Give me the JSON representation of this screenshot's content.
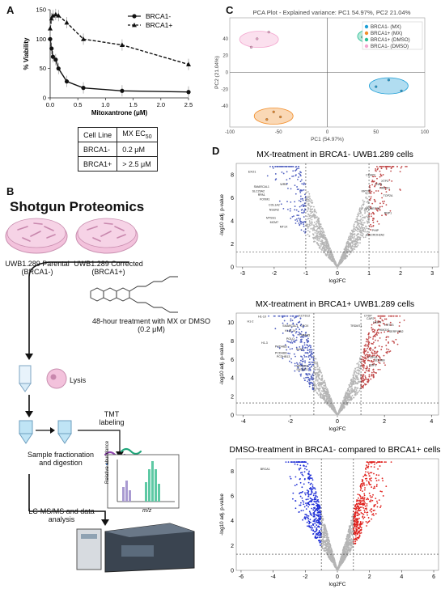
{
  "panels": {
    "a": "A",
    "b": "B",
    "c": "C",
    "d": "D"
  },
  "panel_a": {
    "table": {
      "headers": [
        "Cell Line",
        "MX EC",
        "50"
      ],
      "rows": [
        [
          "BRCA1-",
          "0.2 μM"
        ],
        [
          "BRCA1+",
          "> 2.5 μM"
        ]
      ]
    }
  },
  "panel_b": {
    "title": "Shotgun Proteomics",
    "dish1": "UWB1.289 Parental",
    "dish1_sub": "(BRCA1-)",
    "dish2": "UWB1.289 Corrected",
    "dish2_sub": "(BRCA1+)",
    "treatment": "48-hour treatment with MX or DMSO",
    "treatment_dose": "(0.2 μM)",
    "lysis": "Lysis",
    "tmt": "TMT",
    "tmt2": "labeling",
    "fractionation": "Sample fractionation",
    "fractionation2": "and digestion",
    "lcms": "LC-MS/MS and data",
    "lcms2": "analysis",
    "spectrum_ylabel": "Relative abundance",
    "spectrum_xlabel": "m/z",
    "colors": {
      "dish": "#f3c2dc",
      "sample": "#bfe4f5",
      "peak_purple": "#a99ad1",
      "peak_green": "#5ec9a4"
    }
  },
  "chart_data": [
    {
      "type": "line",
      "panel": "A",
      "xlabel": "Mitoxantrone (μM)",
      "ylabel": "% Viability",
      "xlim": [
        0,
        2.5
      ],
      "ylim": [
        0,
        150
      ],
      "xticks": [
        "0.0",
        "0.5",
        "1.0",
        "1.5",
        "2.0",
        "2.5"
      ],
      "yticks": [
        "0",
        "50",
        "100",
        "150"
      ],
      "legend_position": "top-right",
      "series": [
        {
          "name": "BRCA1-",
          "marker": "circle",
          "x": [
            0.0,
            0.025,
            0.05,
            0.1,
            0.15,
            0.3,
            0.6,
            1.3,
            2.5
          ],
          "y": [
            100,
            84,
            70,
            65,
            50,
            28,
            17,
            12,
            10
          ]
        },
        {
          "name": "BRCA1+",
          "marker": "triangle",
          "x": [
            0.0,
            0.025,
            0.05,
            0.1,
            0.15,
            0.3,
            0.6,
            1.3,
            2.5
          ],
          "y": [
            118,
            135,
            140,
            142,
            140,
            128,
            100,
            90,
            57
          ]
        }
      ]
    },
    {
      "type": "scatter",
      "panel": "C",
      "title": "PCA Plot - Explained variance: PC1 54.97%, PC2 21.04%",
      "xlabel": "PC1 (54.97%)",
      "ylabel": "PC2 (21.04%)",
      "xlim": [
        -100,
        100
      ],
      "ylim": [
        -65,
        65
      ],
      "xticks": [
        "-100",
        "-50",
        "0",
        "50",
        "100"
      ],
      "yticks": [
        "-40",
        "-20",
        "0",
        "20",
        "40"
      ],
      "legend_position": "top-right",
      "series": [
        {
          "name": "BRCA1- (MX)",
          "color": "#1f9fd6",
          "x": [
            50,
            63,
            76
          ],
          "y": [
            -17,
            -9,
            -22
          ]
        },
        {
          "name": "BRCA1+ (MX)",
          "color": "#f28e2b",
          "x": [
            -55,
            -48,
            -62
          ],
          "y": [
            -47,
            -53,
            -56
          ]
        },
        {
          "name": "BRCA1+ (DMSO)",
          "color": "#2bbf94",
          "x": [
            36,
            52,
            65
          ],
          "y": [
            42,
            47,
            40
          ]
        },
        {
          "name": "BRCA1- (DMSO)",
          "color": "#f3a7cf",
          "x": [
            -72,
            -60,
            -78
          ],
          "y": [
            40,
            48,
            30
          ]
        }
      ]
    },
    {
      "type": "scatter",
      "panel": "D1",
      "title": "MX-treatment in BRCA1- UWB1.289 cells",
      "xlabel": "log2FC",
      "ylabel": "-log10 adj. p-value",
      "xlim": [
        -3.2,
        3.2
      ],
      "ylim": [
        0,
        9
      ],
      "xticks": [
        "-3",
        "-2",
        "-1",
        "0",
        "1",
        "2",
        "3"
      ],
      "yticks": [
        "0",
        "2",
        "4",
        "6",
        "8"
      ],
      "labels": [
        {
          "text": "EXO1",
          "x": -2.7,
          "y": 8.2
        },
        {
          "text": "WRN",
          "x": -1.7,
          "y": 7.1
        },
        {
          "text": "SMARCAL1",
          "x": -2.4,
          "y": 6.9
        },
        {
          "text": "SLC29A2",
          "x": -2.5,
          "y": 6.5
        },
        {
          "text": "RPA1",
          "x": -2.4,
          "y": 6.2
        },
        {
          "text": "FOXM1",
          "x": -2.3,
          "y": 5.8
        },
        {
          "text": "COL1A2",
          "x": -2.0,
          "y": 5.3
        },
        {
          "text": "NSUN2",
          "x": -2.0,
          "y": 4.9
        },
        {
          "text": "MTSS1",
          "x": -2.1,
          "y": 4.2
        },
        {
          "text": "MCM7",
          "x": -2.0,
          "y": 3.8
        },
        {
          "text": "MT1X",
          "x": -1.7,
          "y": 3.4
        },
        {
          "text": "CKAP2",
          "x": 1.05,
          "y": 7.9
        },
        {
          "text": "XTP3",
          "x": 1.5,
          "y": 7.4
        },
        {
          "text": "TNS4",
          "x": 1.3,
          "y": 7.1
        },
        {
          "text": "HMOX1",
          "x": 1.5,
          "y": 6.8
        },
        {
          "text": "KRT23",
          "x": 0.9,
          "y": 6.5
        },
        {
          "text": "TOP2A",
          "x": 1.6,
          "y": 6.1
        },
        {
          "text": "APOBEC3B",
          "x": 1.1,
          "y": 5.0
        },
        {
          "text": "RBP1",
          "x": 1.6,
          "y": 4.6
        },
        {
          "text": "PHIP",
          "x": 1.2,
          "y": 3.1
        },
        {
          "text": "MACROH2A2",
          "x": 1.2,
          "y": 2.7
        }
      ]
    },
    {
      "type": "scatter",
      "panel": "D2",
      "title": "MX-treatment in BRCA1+ UWB1.289 cells",
      "xlabel": "log2FC",
      "ylabel": "-log10 adj. p-value",
      "xlim": [
        -4.3,
        4.3
      ],
      "ylim": [
        0,
        11
      ],
      "xticks": [
        "-4",
        "-2",
        "0",
        "2",
        "4"
      ],
      "yticks": [
        "0",
        "2",
        "4",
        "6",
        "8",
        "10"
      ],
      "labels": [
        {
          "text": "H1-10",
          "x": -3.2,
          "y": 10.5
        },
        {
          "text": "KCTD12",
          "x": -1.4,
          "y": 10.6
        },
        {
          "text": "H1-2",
          "x": -3.7,
          "y": 10.0
        },
        {
          "text": "H1-3",
          "x": -3.1,
          "y": 7.7
        },
        {
          "text": "SMARCAL1",
          "x": -2.0,
          "y": 9.5
        },
        {
          "text": "CPOX",
          "x": -1.4,
          "y": 9.5
        },
        {
          "text": "KLHL14",
          "x": -2.0,
          "y": 9.0
        },
        {
          "text": "TSPAN5",
          "x": -1.4,
          "y": 8.5
        },
        {
          "text": "POLQ",
          "x": -2.0,
          "y": 8.1
        },
        {
          "text": "PCDHB5",
          "x": -2.4,
          "y": 7.3
        },
        {
          "text": "SUN1",
          "x": -1.6,
          "y": 7.0
        },
        {
          "text": "PCDHB6",
          "x": -2.4,
          "y": 6.6
        },
        {
          "text": "PCDHB13",
          "x": -2.3,
          "y": 6.2
        },
        {
          "text": "MAP2K6",
          "x": -1.5,
          "y": 5.2
        },
        {
          "text": "SASBP3",
          "x": -1.5,
          "y": 4.8
        },
        {
          "text": "CTDP",
          "x": 1.3,
          "y": 10.6
        },
        {
          "text": "CAP2",
          "x": 1.4,
          "y": 10.3
        },
        {
          "text": "HEPH",
          "x": 1.7,
          "y": 9.9
        },
        {
          "text": "KRT23",
          "x": 2.2,
          "y": 9.6
        },
        {
          "text": "TRDMT1",
          "x": 0.8,
          "y": 9.5
        },
        {
          "text": "HMOX1",
          "x": 2.0,
          "y": 9.1
        },
        {
          "text": "SERPINB2",
          "x": 2.5,
          "y": 8.9
        },
        {
          "text": "TOP2A",
          "x": 1.5,
          "y": 6.1
        },
        {
          "text": "EDNRB",
          "x": 1.8,
          "y": 5.8
        },
        {
          "text": "RBP1",
          "x": 1.5,
          "y": 5.3
        }
      ]
    },
    {
      "type": "scatter",
      "panel": "D3",
      "title": "DMSO-treatment in BRCA1- compared to BRCA1+ cells",
      "xlabel": "log2FC",
      "ylabel": "-log10 adj. p-value",
      "xlim": [
        -6.3,
        6.3
      ],
      "ylim": [
        0,
        9
      ],
      "xticks": [
        "-6",
        "-4",
        "-2",
        "0",
        "2",
        "4",
        "6"
      ],
      "yticks": [
        "0",
        "2",
        "4",
        "6",
        "8"
      ],
      "labels": [
        {
          "text": "BRCA1",
          "x": -4.5,
          "y": 8.1
        }
      ]
    }
  ]
}
